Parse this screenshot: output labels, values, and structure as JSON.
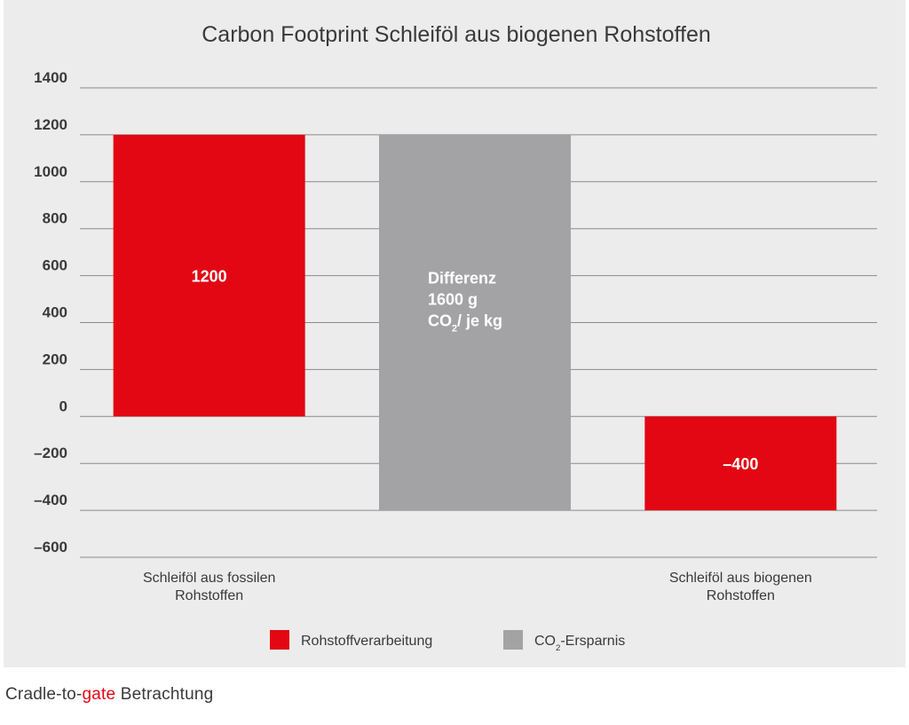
{
  "colors": {
    "panel_bg": "#ececec",
    "processing": "#e30613",
    "savings": "#a3a3a6",
    "grid": "#8a8a8a",
    "text": "#3a3a3a",
    "value_label": "#ffffff",
    "footer_accent": "#e30613"
  },
  "chart_data": {
    "type": "bar",
    "title": "Carbon Footprint Schleiföl aus biogenen Rohstoffen",
    "xlabel": "",
    "ylabel": "",
    "ylim": [
      -600,
      1400
    ],
    "yticks": [
      1400,
      1200,
      1000,
      800,
      600,
      400,
      200,
      0,
      -200,
      -400,
      -600
    ],
    "ytick_labels": [
      "1400",
      "1200",
      "1000",
      "800",
      "600",
      "400",
      "200",
      "0",
      "–200",
      "–400",
      "–600"
    ],
    "grid": true,
    "legend_position": "bottom-center",
    "categories": [
      [
        "Schleiföl aus fossilen",
        "Rohstoffen"
      ],
      [],
      [
        "Schleiföl aus biogenen",
        "Rohstoffen"
      ]
    ],
    "bars": [
      {
        "series": "Rohstoffverarbeitung",
        "from": 0,
        "to": 1200,
        "label": [
          "1200"
        ],
        "label_align": "center"
      },
      {
        "series": "CO₂-Ersparnis",
        "from": -400,
        "to": 1200,
        "label": [
          "Differenz",
          "1600 g",
          "CO₂/ je kg"
        ],
        "label_align": "left"
      },
      {
        "series": "Rohstoffverarbeitung",
        "from": -400,
        "to": 0,
        "label": [
          "–400"
        ],
        "label_align": "center"
      }
    ],
    "series": [
      {
        "name": "Rohstoffverarbeitung",
        "color": "#e30613"
      },
      {
        "name": "CO₂-Ersparnis",
        "color": "#a3a3a6"
      }
    ]
  },
  "footer": {
    "prefix": "Cradle-to-",
    "accent": "gate",
    "suffix": " Betrachtung"
  }
}
